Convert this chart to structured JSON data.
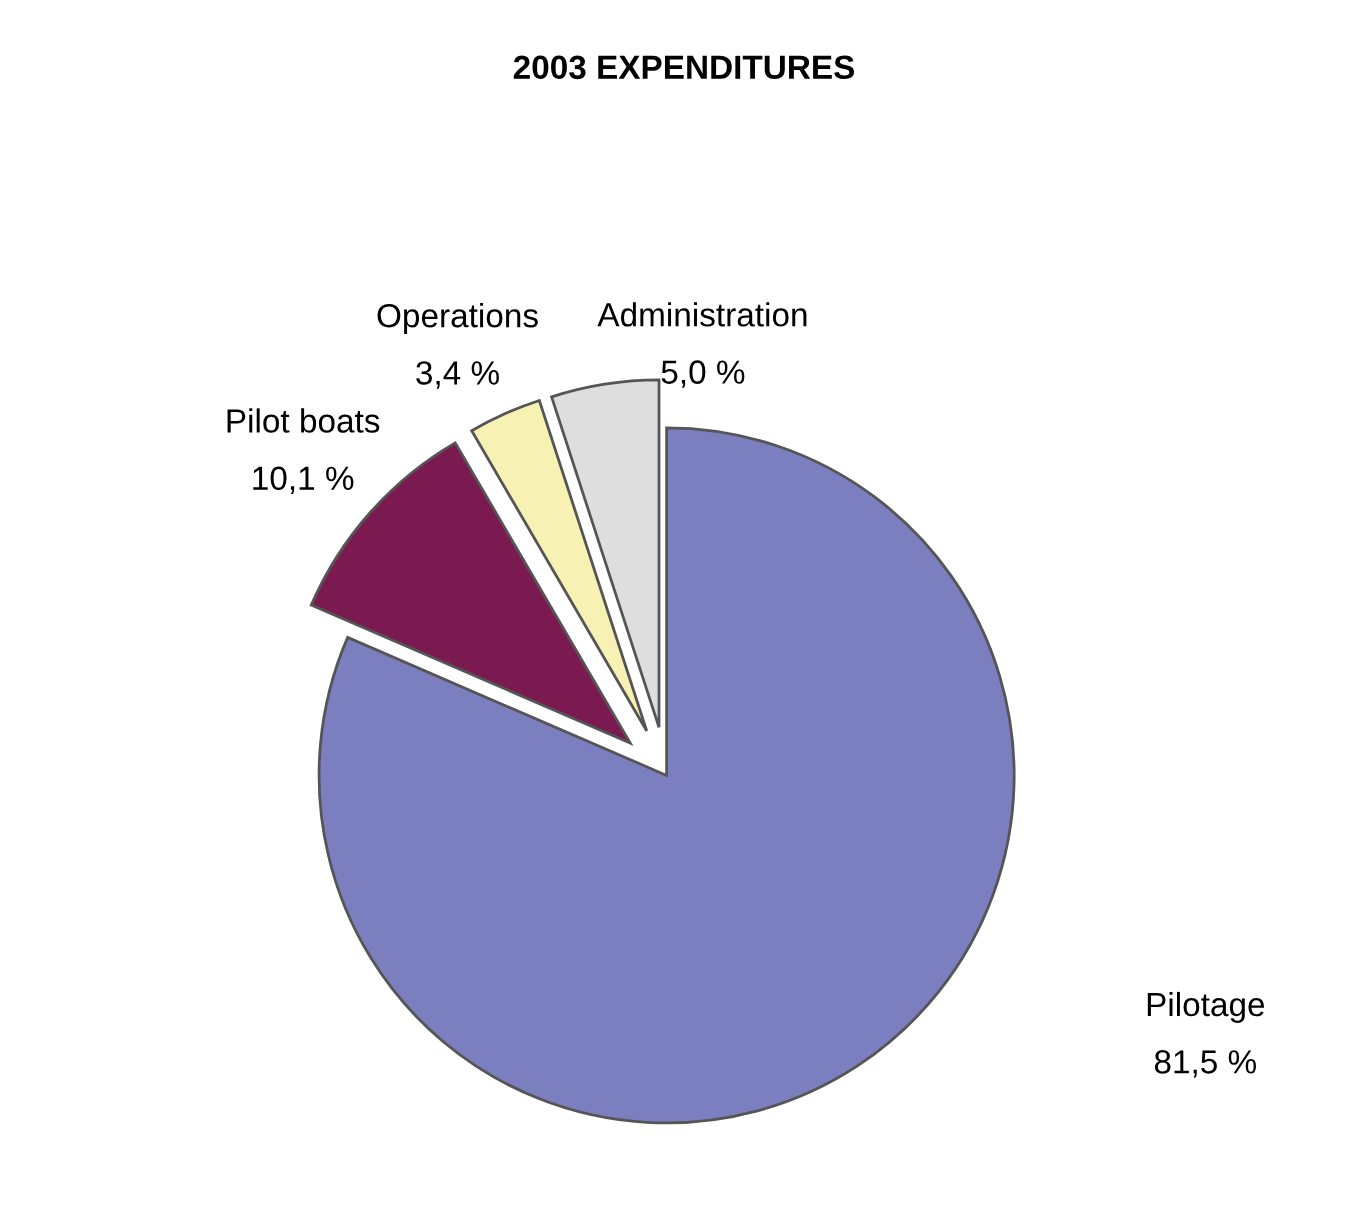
{
  "chart_data": {
    "type": "pie",
    "title": "2003 EXPENDITURES",
    "categories": [
      "Pilotage",
      "Pilot boats",
      "Operations",
      "Administration"
    ],
    "values": [
      81.5,
      10.1,
      3.4,
      5.0
    ],
    "value_labels": [
      "81,5 %",
      "10,1 %",
      "3,4 %",
      "5,0 %"
    ],
    "colors": [
      "#7b7fc0",
      "#7a1a50",
      "#f7f2b4",
      "#dedede"
    ],
    "legend": false
  }
}
